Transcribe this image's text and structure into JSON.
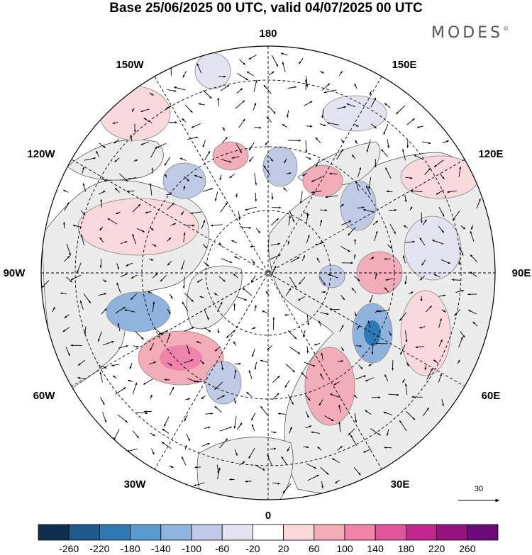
{
  "title": "Base 25/06/2025 00 UTC, valid 04/07/2025 00 UTC",
  "brand": "MODES",
  "brand_mark": "©",
  "longitude_labels": {
    "top": "180",
    "top_left": "150W",
    "top_right": "150E",
    "upper_left": "120W",
    "upper_right": "120E",
    "left": "90W",
    "right": "90E",
    "lower_left": "60W",
    "lower_right": "60E",
    "bottom_left": "30W",
    "bottom_right": "30E",
    "bottom": "0"
  },
  "reference_vector_label": "30",
  "colorbar": {
    "colors": [
      "#0f2f4f",
      "#1e5a8c",
      "#2f79b5",
      "#5a9bcf",
      "#8fb3dd",
      "#c0c9e6",
      "#e4e3f1",
      "#ffffff",
      "#f9d9dc",
      "#f3adb9",
      "#ef83aa",
      "#e0559a",
      "#c3268c",
      "#97117f",
      "#6a0b78"
    ],
    "labels": [
      "-260",
      "-220",
      "-180",
      "-140",
      "-100",
      "-60",
      "-20",
      "20",
      "60",
      "100",
      "140",
      "180",
      "220",
      "260"
    ]
  },
  "map": {
    "projection": "north-polar-stereographic",
    "land_color": "#ededed",
    "ocean_color": "#ffffff"
  }
}
